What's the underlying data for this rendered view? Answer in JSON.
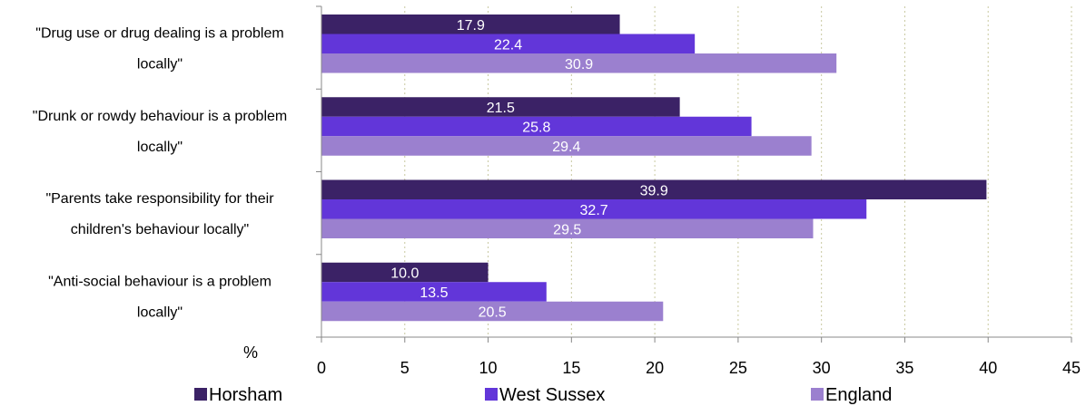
{
  "chart_data": {
    "type": "bar",
    "orientation": "horizontal",
    "categories": [
      [
        "\"Drug use or drug dealing is a problem",
        "locally\""
      ],
      [
        "\"Drunk or rowdy behaviour is a problem",
        "locally\""
      ],
      [
        "\"Parents take responsibility for their",
        "children's behaviour locally\""
      ],
      [
        "\"Anti-social behaviour is a problem",
        "locally\""
      ]
    ],
    "series": [
      {
        "name": "Horsham",
        "values": [
          17.9,
          21.5,
          39.9,
          10.0
        ],
        "labels": [
          "17.9",
          "21.5",
          "39.9",
          "10.0"
        ],
        "color": "#3b2266"
      },
      {
        "name": "West Sussex",
        "values": [
          22.4,
          25.8,
          32.7,
          13.5
        ],
        "labels": [
          "22.4",
          "25.8",
          "32.7",
          "13.5"
        ],
        "color": "#6236d9"
      },
      {
        "name": "England",
        "values": [
          30.9,
          29.4,
          29.5,
          20.5
        ],
        "labels": [
          "30.9",
          "29.4",
          "29.5",
          "20.5"
        ],
        "color": "#9b80cf"
      }
    ],
    "xlim": [
      0,
      45
    ],
    "xticks": [
      0,
      5,
      10,
      15,
      20,
      25,
      30,
      35,
      40,
      45
    ],
    "xlabel": "%",
    "grid": "vertical dotted",
    "legend": "bottom"
  }
}
